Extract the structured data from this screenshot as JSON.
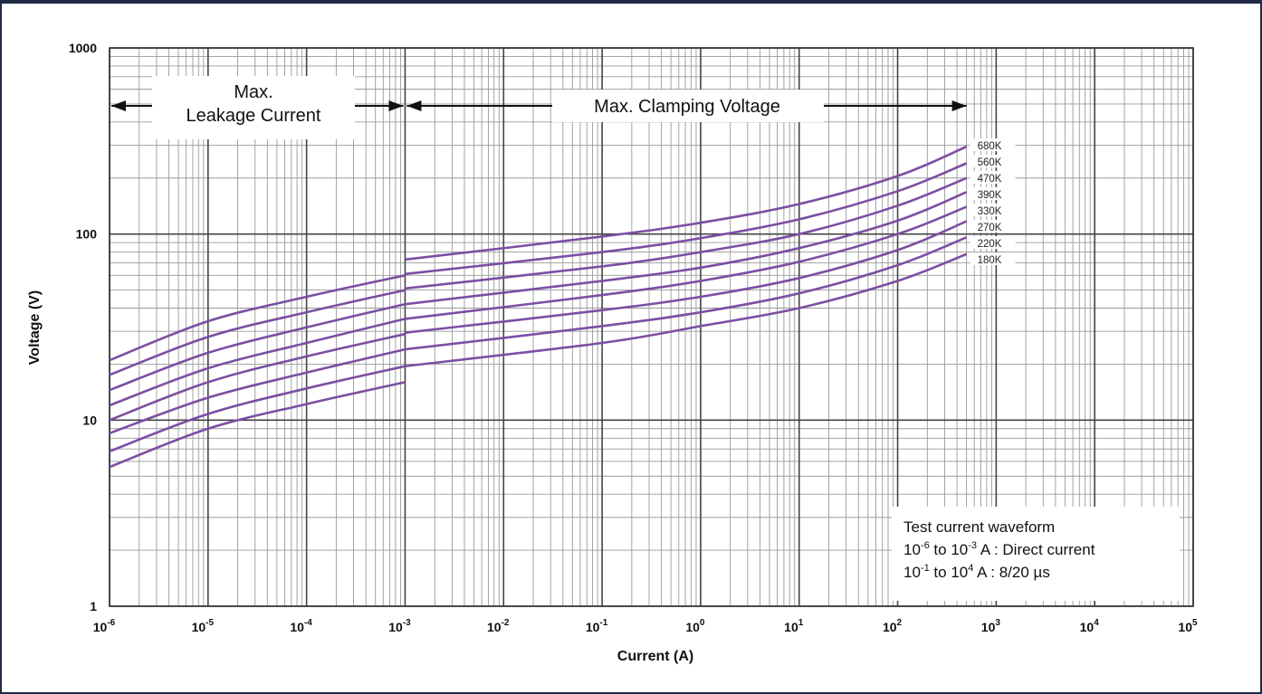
{
  "chart_data": {
    "type": "line",
    "xlabel": "Current (A)",
    "ylabel": "Voltage (V)",
    "xscale": "log",
    "yscale": "log",
    "xlim": [
      1e-06,
      100000.0
    ],
    "ylim": [
      1,
      1000
    ],
    "grid": true,
    "x_tick_labels": [
      {
        "base": "10",
        "exp": "-6"
      },
      {
        "base": "10",
        "exp": "-5"
      },
      {
        "base": "10",
        "exp": "-4"
      },
      {
        "base": "10",
        "exp": "-3"
      },
      {
        "base": "10",
        "exp": "-2"
      },
      {
        "base": "10",
        "exp": "-1"
      },
      {
        "base": "10",
        "exp": "0"
      },
      {
        "base": "10",
        "exp": "1"
      },
      {
        "base": "10",
        "exp": "2"
      },
      {
        "base": "10",
        "exp": "3"
      },
      {
        "base": "10",
        "exp": "4"
      },
      {
        "base": "10",
        "exp": "5"
      }
    ],
    "y_tick_labels": [
      "1",
      "10",
      "100",
      "1000"
    ],
    "regions": [
      {
        "label_lines": [
          "Max.",
          "Leakage Current"
        ],
        "x_range": [
          1e-06,
          0.001
        ]
      },
      {
        "label_lines": [
          "Max. Clamping Voltage"
        ],
        "x_range": [
          0.001,
          500
        ]
      }
    ],
    "note": {
      "lines": [
        {
          "parts": [
            "Test current waveform"
          ]
        },
        {
          "parts": [
            "10",
            "-6",
            "  to 10",
            "-3",
            " A : Direct current"
          ]
        },
        {
          "parts": [
            "10",
            "-1",
            "  to 10",
            "4",
            "  A : 8/20 µs"
          ]
        }
      ]
    },
    "line_color": "#7b4fa3",
    "series": [
      {
        "name": "680K",
        "leakage": [
          [
            1e-06,
            21
          ],
          [
            1e-05,
            34
          ],
          [
            0.0001,
            46
          ],
          [
            0.001,
            60
          ]
        ],
        "clamping": [
          [
            0.001,
            73
          ],
          [
            0.1,
            97
          ],
          [
            1,
            115
          ],
          [
            10,
            145
          ],
          [
            100,
            205
          ],
          [
            500,
            295
          ]
        ]
      },
      {
        "name": "560K",
        "leakage": [
          [
            1e-06,
            17.5
          ],
          [
            1e-05,
            28
          ],
          [
            0.0001,
            38
          ],
          [
            0.001,
            50
          ]
        ],
        "clamping": [
          [
            0.001,
            61
          ],
          [
            0.1,
            80
          ],
          [
            1,
            95
          ],
          [
            10,
            120
          ],
          [
            100,
            170
          ],
          [
            500,
            240
          ]
        ]
      },
      {
        "name": "470K",
        "leakage": [
          [
            1e-06,
            14.5
          ],
          [
            1e-05,
            23
          ],
          [
            0.0001,
            31.5
          ],
          [
            0.001,
            42
          ]
        ],
        "clamping": [
          [
            0.001,
            51
          ],
          [
            0.1,
            67
          ],
          [
            1,
            80
          ],
          [
            10,
            100
          ],
          [
            100,
            142
          ],
          [
            500,
            200
          ]
        ]
      },
      {
        "name": "390K",
        "leakage": [
          [
            1e-06,
            12
          ],
          [
            1e-05,
            19
          ],
          [
            0.0001,
            26
          ],
          [
            0.001,
            35
          ]
        ],
        "clamping": [
          [
            0.001,
            42
          ],
          [
            0.1,
            56
          ],
          [
            1,
            66
          ],
          [
            10,
            84
          ],
          [
            100,
            118
          ],
          [
            500,
            168
          ]
        ]
      },
      {
        "name": "330K",
        "leakage": [
          [
            1e-06,
            10
          ],
          [
            1e-05,
            16
          ],
          [
            0.0001,
            22
          ],
          [
            0.001,
            29
          ]
        ],
        "clamping": [
          [
            0.001,
            35
          ],
          [
            0.1,
            47
          ],
          [
            1,
            56
          ],
          [
            10,
            71
          ],
          [
            100,
            100
          ],
          [
            500,
            140
          ]
        ]
      },
      {
        "name": "270K",
        "leakage": [
          [
            1e-06,
            8.5
          ],
          [
            1e-05,
            13.2
          ],
          [
            0.0001,
            18
          ],
          [
            0.001,
            24
          ]
        ],
        "clamping": [
          [
            0.001,
            29.5
          ],
          [
            0.1,
            39
          ],
          [
            1,
            46
          ],
          [
            10,
            58
          ],
          [
            100,
            82
          ],
          [
            500,
            117
          ]
        ]
      },
      {
        "name": "220K",
        "leakage": [
          [
            1e-06,
            6.8
          ],
          [
            1e-05,
            10.8
          ],
          [
            0.0001,
            14.8
          ],
          [
            0.001,
            19.5
          ]
        ],
        "clamping": [
          [
            0.001,
            24
          ],
          [
            0.1,
            32
          ],
          [
            1,
            38
          ],
          [
            10,
            48
          ],
          [
            100,
            68
          ],
          [
            500,
            96
          ]
        ]
      },
      {
        "name": "180K",
        "leakage": [
          [
            1e-06,
            5.6
          ],
          [
            1e-05,
            9
          ],
          [
            0.0001,
            12.2
          ],
          [
            0.001,
            16
          ]
        ],
        "clamping": [
          [
            0.001,
            19.5
          ],
          [
            0.1,
            26
          ],
          [
            1,
            32
          ],
          [
            10,
            40
          ],
          [
            100,
            56
          ],
          [
            500,
            78
          ]
        ]
      }
    ]
  }
}
